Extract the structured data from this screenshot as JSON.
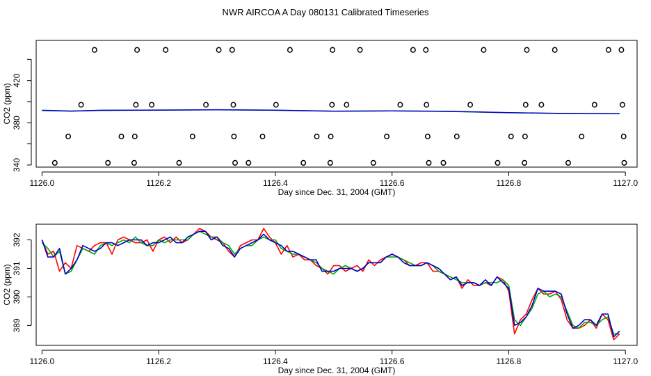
{
  "title": "NWR AIRCOA A  Day 080131  Calibrated Timeseries",
  "colors": {
    "red": "#ff0000",
    "green": "#00aa00",
    "blue": "#0000cc"
  },
  "chart_data": [
    {
      "type": "scatter",
      "xlabel": "Day since Dec. 31, 2004 (GMT)",
      "ylabel": "CO2 (ppm)",
      "xlim": [
        1125.99,
        1127.02
      ],
      "ylim": [
        338,
        458
      ],
      "xticks": [
        "1126.0",
        "1126.2",
        "1126.4",
        "1126.6",
        "1126.8",
        "1127.0"
      ],
      "yticks": [
        "340",
        "380",
        "420"
      ],
      "points": [
        {
          "x": 1126.022,
          "y": 342
        },
        {
          "x": 1126.045,
          "y": 367
        },
        {
          "x": 1126.067,
          "y": 397
        },
        {
          "x": 1126.09,
          "y": 449
        },
        {
          "x": 1126.113,
          "y": 342
        },
        {
          "x": 1126.136,
          "y": 367
        },
        {
          "x": 1126.158,
          "y": 342
        },
        {
          "x": 1126.159,
          "y": 367
        },
        {
          "x": 1126.161,
          "y": 397
        },
        {
          "x": 1126.163,
          "y": 449
        },
        {
          "x": 1126.188,
          "y": 397
        },
        {
          "x": 1126.212,
          "y": 449
        },
        {
          "x": 1126.235,
          "y": 342
        },
        {
          "x": 1126.258,
          "y": 367
        },
        {
          "x": 1126.281,
          "y": 397
        },
        {
          "x": 1126.303,
          "y": 449
        },
        {
          "x": 1126.326,
          "y": 449
        },
        {
          "x": 1126.328,
          "y": 397
        },
        {
          "x": 1126.329,
          "y": 367
        },
        {
          "x": 1126.331,
          "y": 342
        },
        {
          "x": 1126.354,
          "y": 342
        },
        {
          "x": 1126.378,
          "y": 367
        },
        {
          "x": 1126.401,
          "y": 397
        },
        {
          "x": 1126.425,
          "y": 449
        },
        {
          "x": 1126.448,
          "y": 342
        },
        {
          "x": 1126.471,
          "y": 367
        },
        {
          "x": 1126.494,
          "y": 342
        },
        {
          "x": 1126.495,
          "y": 367
        },
        {
          "x": 1126.497,
          "y": 397
        },
        {
          "x": 1126.498,
          "y": 449
        },
        {
          "x": 1126.522,
          "y": 397
        },
        {
          "x": 1126.545,
          "y": 449
        },
        {
          "x": 1126.568,
          "y": 342
        },
        {
          "x": 1126.591,
          "y": 367
        },
        {
          "x": 1126.614,
          "y": 397
        },
        {
          "x": 1126.636,
          "y": 449
        },
        {
          "x": 1126.658,
          "y": 449
        },
        {
          "x": 1126.659,
          "y": 397
        },
        {
          "x": 1126.661,
          "y": 367
        },
        {
          "x": 1126.663,
          "y": 342
        },
        {
          "x": 1126.688,
          "y": 342
        },
        {
          "x": 1126.711,
          "y": 367
        },
        {
          "x": 1126.734,
          "y": 397
        },
        {
          "x": 1126.757,
          "y": 449
        },
        {
          "x": 1126.781,
          "y": 342
        },
        {
          "x": 1126.804,
          "y": 367
        },
        {
          "x": 1126.827,
          "y": 342
        },
        {
          "x": 1126.828,
          "y": 367
        },
        {
          "x": 1126.829,
          "y": 397
        },
        {
          "x": 1126.831,
          "y": 449
        },
        {
          "x": 1126.856,
          "y": 397
        },
        {
          "x": 1126.879,
          "y": 449
        },
        {
          "x": 1126.902,
          "y": 342
        },
        {
          "x": 1126.925,
          "y": 367
        },
        {
          "x": 1126.947,
          "y": 397
        },
        {
          "x": 1126.971,
          "y": 449
        },
        {
          "x": 1126.993,
          "y": 449
        },
        {
          "x": 1126.995,
          "y": 397
        },
        {
          "x": 1126.997,
          "y": 367
        },
        {
          "x": 1126.998,
          "y": 342
        }
      ],
      "lines": [
        {
          "color": "green",
          "x": [
            1126.0,
            1126.05,
            1126.1,
            1126.2,
            1126.3,
            1126.4,
            1126.5,
            1126.6,
            1126.7,
            1126.8,
            1126.9,
            1126.99
          ],
          "y": [
            391.6,
            391.0,
            391.7,
            392.0,
            392.2,
            391.8,
            390.9,
            391.3,
            390.7,
            389.5,
            388.6,
            388.5
          ]
        },
        {
          "color": "blue",
          "x": [
            1126.0,
            1126.05,
            1126.1,
            1126.2,
            1126.3,
            1126.4,
            1126.5,
            1126.6,
            1126.7,
            1126.8,
            1126.9,
            1126.99
          ],
          "y": [
            391.8,
            391.1,
            391.8,
            392.0,
            392.3,
            391.9,
            391.0,
            391.3,
            390.8,
            389.6,
            388.8,
            388.6
          ]
        }
      ]
    },
    {
      "type": "line",
      "xlabel": "Day since Dec. 31, 2004 (GMT)",
      "ylabel": "CO2 (ppm)",
      "xlim": [
        1125.99,
        1127.02
      ],
      "ylim": [
        388.3,
        392.55
      ],
      "xticks": [
        "1126.0",
        "1126.2",
        "1126.4",
        "1126.6",
        "1126.8",
        "1127.0"
      ],
      "yticks": [
        "389",
        "390",
        "391",
        "392"
      ],
      "x": [
        1126.0,
        1126.01,
        1126.02,
        1126.03,
        1126.04,
        1126.05,
        1126.06,
        1126.07,
        1126.08,
        1126.09,
        1126.1,
        1126.11,
        1126.12,
        1126.13,
        1126.14,
        1126.15,
        1126.16,
        1126.17,
        1126.18,
        1126.19,
        1126.2,
        1126.21,
        1126.22,
        1126.23,
        1126.24,
        1126.25,
        1126.26,
        1126.27,
        1126.28,
        1126.29,
        1126.3,
        1126.31,
        1126.32,
        1126.33,
        1126.34,
        1126.35,
        1126.36,
        1126.37,
        1126.38,
        1126.39,
        1126.4,
        1126.41,
        1126.42,
        1126.43,
        1126.44,
        1126.45,
        1126.46,
        1126.47,
        1126.48,
        1126.49,
        1126.5,
        1126.51,
        1126.52,
        1126.53,
        1126.54,
        1126.55,
        1126.56,
        1126.57,
        1126.58,
        1126.59,
        1126.6,
        1126.61,
        1126.62,
        1126.63,
        1126.64,
        1126.65,
        1126.66,
        1126.67,
        1126.68,
        1126.69,
        1126.7,
        1126.71,
        1126.72,
        1126.73,
        1126.74,
        1126.75,
        1126.76,
        1126.77,
        1126.78,
        1126.79,
        1126.8,
        1126.81,
        1126.82,
        1126.83,
        1126.84,
        1126.85,
        1126.86,
        1126.87,
        1126.88,
        1126.89,
        1126.9,
        1126.91,
        1126.92,
        1126.93,
        1126.94,
        1126.95,
        1126.96,
        1126.97,
        1126.98,
        1126.99
      ],
      "series": [
        {
          "color": "red",
          "values": [
            392.0,
            391.5,
            391.6,
            390.9,
            391.2,
            391.0,
            391.8,
            391.7,
            391.6,
            391.8,
            391.9,
            391.9,
            391.5,
            392.0,
            392.1,
            392.0,
            391.9,
            391.9,
            392.0,
            391.6,
            392.0,
            392.1,
            391.9,
            392.1,
            391.9,
            392.0,
            392.2,
            392.4,
            392.3,
            392.1,
            392.0,
            391.9,
            391.6,
            391.4,
            391.8,
            391.9,
            392.0,
            392.0,
            392.4,
            392.1,
            391.9,
            391.5,
            391.8,
            391.4,
            391.5,
            391.3,
            391.3,
            391.1,
            391.0,
            390.8,
            391.1,
            391.1,
            390.9,
            391.0,
            391.1,
            390.9,
            391.3,
            391.1,
            391.3,
            391.4,
            391.5,
            391.4,
            391.3,
            391.1,
            391.1,
            391.2,
            391.2,
            390.9,
            390.9,
            390.8,
            390.6,
            390.7,
            390.3,
            390.6,
            390.4,
            390.4,
            390.5,
            390.4,
            390.7,
            390.6,
            390.2,
            388.7,
            389.2,
            389.4,
            389.9,
            390.3,
            390.1,
            390.1,
            390.2,
            389.9,
            389.2,
            388.9,
            388.9,
            389.0,
            389.2,
            388.9,
            389.4,
            389.2,
            388.5,
            388.7
          ]
        },
        {
          "color": "green",
          "values": [
            391.9,
            391.7,
            391.4,
            391.6,
            390.8,
            390.9,
            391.3,
            391.7,
            391.6,
            391.5,
            391.8,
            391.9,
            391.8,
            391.9,
            392.0,
            391.9,
            392.1,
            391.9,
            391.8,
            391.8,
            392.0,
            391.9,
            392.0,
            392.0,
            392.0,
            392.0,
            392.2,
            392.3,
            392.2,
            392.1,
            392.1,
            391.9,
            391.8,
            391.5,
            391.7,
            391.8,
            391.8,
            392.0,
            392.1,
            392.0,
            392.0,
            391.7,
            391.6,
            391.5,
            391.5,
            391.4,
            391.3,
            391.2,
            391.0,
            390.9,
            390.8,
            391.0,
            391.1,
            391.0,
            390.9,
            391.0,
            391.2,
            391.2,
            391.2,
            391.4,
            391.4,
            391.4,
            391.3,
            391.2,
            391.1,
            391.1,
            391.2,
            391.1,
            390.9,
            390.8,
            390.7,
            390.6,
            390.5,
            390.5,
            390.5,
            390.4,
            390.5,
            390.5,
            390.5,
            390.6,
            390.4,
            389.2,
            389.0,
            389.3,
            389.6,
            390.1,
            390.2,
            390.0,
            390.1,
            390.0,
            389.5,
            389.0,
            388.9,
            389.1,
            389.1,
            389.0,
            389.2,
            389.3,
            388.7,
            388.7
          ]
        },
        {
          "color": "blue",
          "values": [
            392.0,
            391.4,
            391.4,
            391.7,
            390.8,
            391.0,
            391.3,
            391.8,
            391.7,
            391.6,
            391.7,
            391.9,
            391.9,
            391.8,
            391.9,
            392.0,
            392.0,
            392.0,
            391.8,
            391.9,
            391.9,
            392.0,
            392.1,
            391.9,
            391.9,
            392.1,
            392.2,
            392.3,
            392.3,
            392.0,
            392.1,
            391.8,
            391.7,
            391.4,
            391.7,
            391.8,
            391.9,
            392.0,
            392.2,
            392.0,
            391.9,
            391.8,
            391.6,
            391.6,
            391.5,
            391.4,
            391.3,
            391.3,
            390.9,
            390.9,
            390.9,
            391.0,
            391.0,
            391.0,
            390.9,
            391.0,
            391.2,
            391.2,
            391.2,
            391.4,
            391.5,
            391.4,
            391.2,
            391.1,
            391.1,
            391.1,
            391.2,
            391.1,
            391.0,
            390.8,
            390.6,
            390.7,
            390.4,
            390.5,
            390.5,
            390.4,
            390.6,
            390.4,
            390.7,
            390.5,
            390.3,
            389.0,
            389.1,
            389.3,
            389.7,
            390.3,
            390.2,
            390.2,
            390.2,
            390.1,
            389.4,
            388.9,
            389.0,
            389.2,
            389.2,
            389.0,
            389.4,
            389.4,
            388.6,
            388.8
          ]
        }
      ]
    }
  ]
}
